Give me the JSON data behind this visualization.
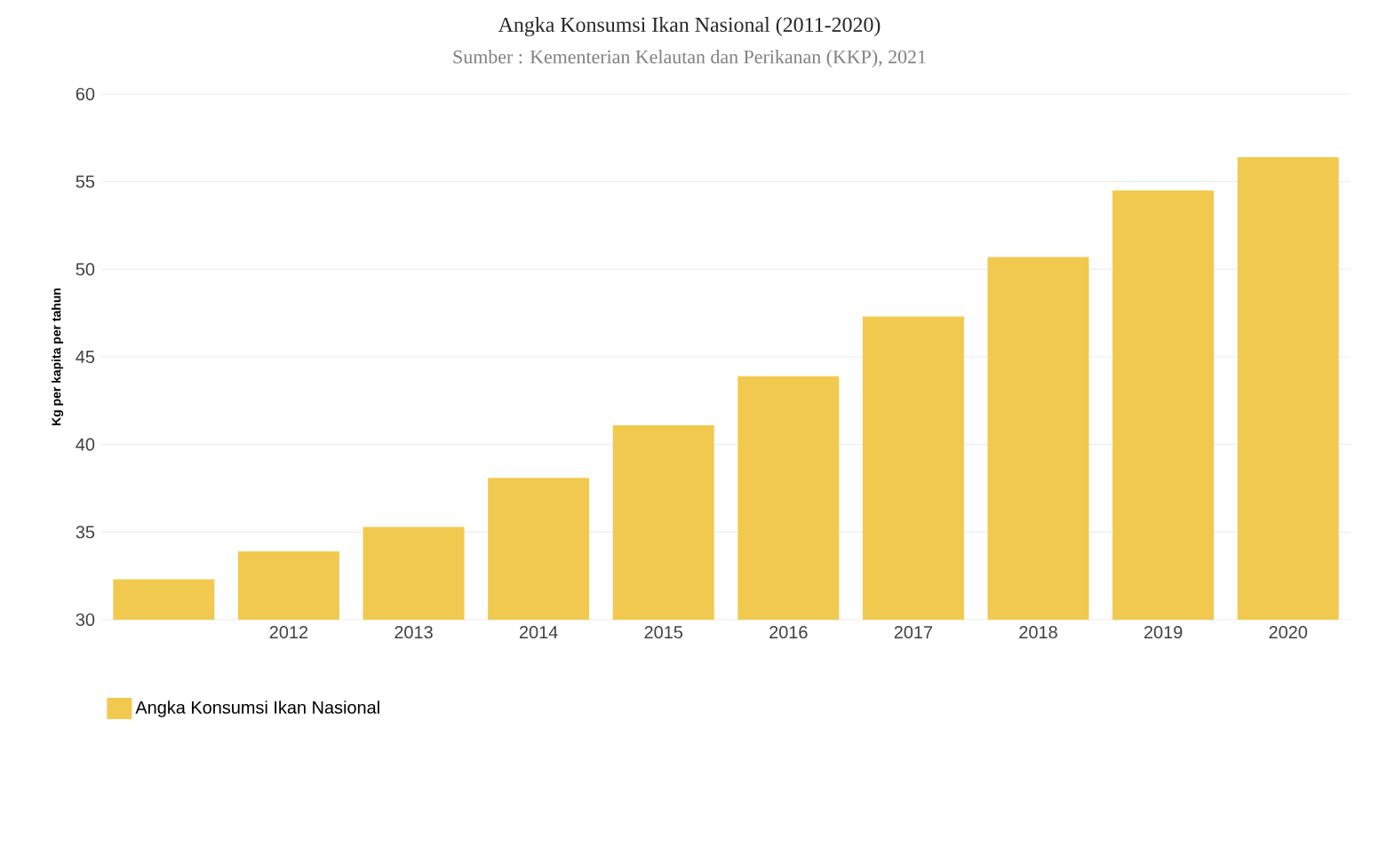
{
  "chart_data": {
    "type": "bar",
    "title": "Angka Konsumsi Ikan Nasional (2011-2020)",
    "subtitle": "Sumber : Kementerian Kelautan dan Perikanan (KKP), 2021",
    "ylabel": "Kg per kapita per tahun",
    "categories": [
      null,
      "2012",
      "2013",
      "2014",
      "2015",
      "2016",
      "2017",
      "2018",
      "2019",
      "2020"
    ],
    "series": [
      {
        "name": "Angka Konsumsi Ikan Nasional",
        "color": "#f2c94f",
        "values": [
          32.3,
          33.9,
          35.3,
          38.1,
          41.1,
          43.9,
          47.3,
          50.7,
          54.5,
          56.4
        ]
      }
    ],
    "ylim": [
      30,
      60
    ],
    "yticks": [
      30,
      35,
      40,
      45,
      50,
      55,
      60
    ],
    "grid": "y",
    "legend": "bottom left"
  }
}
